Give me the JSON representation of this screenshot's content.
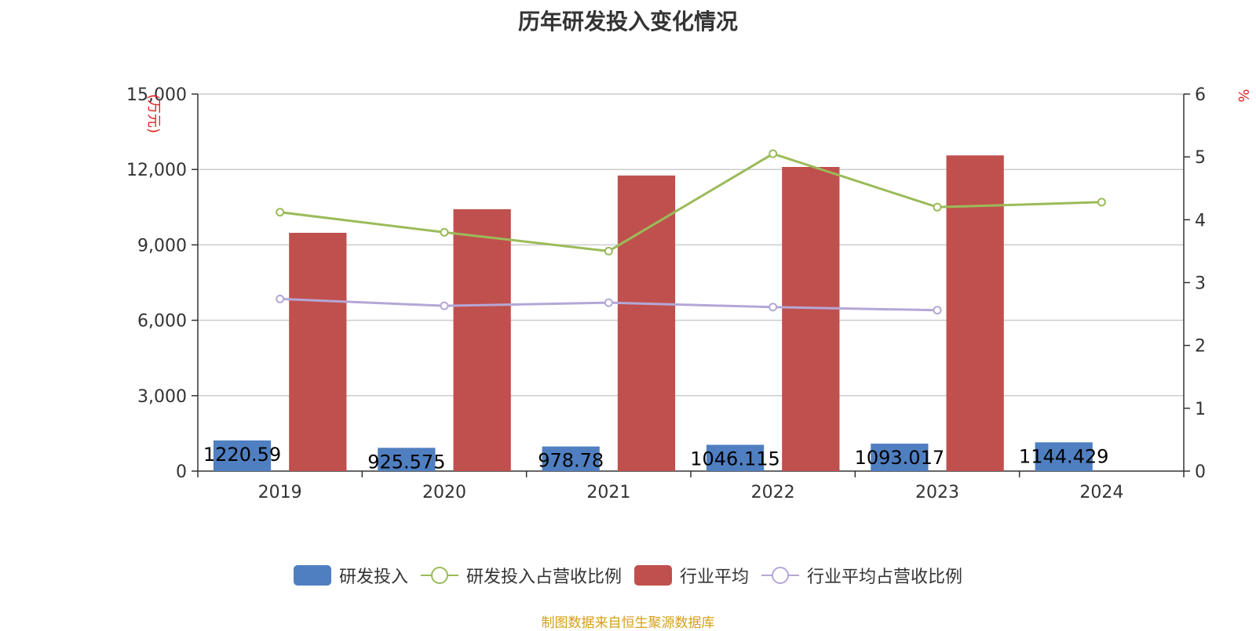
{
  "chart_data": {
    "type": "bar",
    "title": "历年研发投入变化情况",
    "categories": [
      "2019",
      "2020",
      "2021",
      "2022",
      "2023",
      "2024"
    ],
    "y_left": {
      "unit_label": "(万元)",
      "ylim": [
        0,
        15000
      ],
      "ticks": [
        "0",
        "3,000",
        "6,000",
        "9,000",
        "12,000",
        "15,000"
      ],
      "tick_values": [
        0,
        3000,
        6000,
        9000,
        12000,
        15000
      ]
    },
    "y_right": {
      "unit_label": "%",
      "ylim": [
        0,
        6
      ],
      "ticks": [
        "0",
        "1",
        "2",
        "3",
        "4",
        "5",
        "6"
      ],
      "tick_values": [
        0,
        1,
        2,
        3,
        4,
        5,
        6
      ]
    },
    "grid": true,
    "legend_position": "bottom",
    "series": [
      {
        "name": "研发投入",
        "kind": "bar",
        "axis": "left",
        "color": "#4f7fc0",
        "values": [
          1220.59,
          925.575,
          978.78,
          1046.115,
          1093.017,
          1144.429
        ],
        "labels": [
          "1220.59",
          "925.575",
          "978.78",
          "1046.115",
          "1093.017",
          "1144.429"
        ]
      },
      {
        "name": "研发投入占营收比例",
        "kind": "line",
        "axis": "right",
        "color": "#9bbb59",
        "values": [
          4.12,
          3.8,
          3.5,
          5.05,
          4.2,
          4.28
        ]
      },
      {
        "name": "行业平均",
        "kind": "bar",
        "axis": "left",
        "color": "#c0504d",
        "values": [
          9480,
          10420,
          11760,
          12100,
          12560,
          null
        ]
      },
      {
        "name": "行业平均占营收比例",
        "kind": "line",
        "axis": "right",
        "color": "#b4a7d6",
        "values": [
          2.74,
          2.63,
          2.68,
          2.61,
          2.56,
          null
        ]
      }
    ]
  },
  "legend": {
    "items": [
      {
        "label": "研发投入",
        "type": "bar",
        "color": "#4f7fc0"
      },
      {
        "label": "研发投入占营收比例",
        "type": "line",
        "color": "#9bbb59"
      },
      {
        "label": "行业平均",
        "type": "bar",
        "color": "#c0504d"
      },
      {
        "label": "行业平均占营收比例",
        "type": "line",
        "color": "#b4a7d6"
      }
    ]
  },
  "source_note": "制图数据来自恒生聚源数据库"
}
